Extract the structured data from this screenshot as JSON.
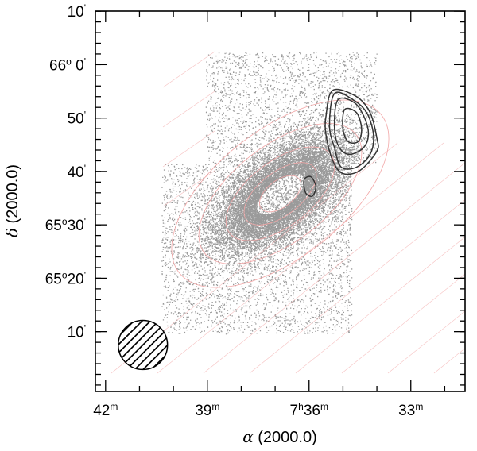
{
  "chart_data": {
    "type": "scatter",
    "title": "",
    "xlabel": {
      "sym": "α",
      "rest": " (2000.0)"
    },
    "ylabel": {
      "sym": "δ",
      "rest": " (2000.0)"
    },
    "x_unit": "right ascension (minutes of time), axis increasing to the left",
    "y_unit": "declination (arcminutes)",
    "xlim": [
      42.3,
      31.4
    ],
    "ylim": [
      64.98,
      66.167
    ],
    "grid": false,
    "legend": "none",
    "x_ticks": [
      {
        "value": 42,
        "parts": [
          [
            "42",
            ""
          ],
          [
            "m",
            "sup"
          ]
        ]
      },
      {
        "value": 39,
        "parts": [
          [
            "39",
            ""
          ],
          [
            "m",
            "sup"
          ]
        ]
      },
      {
        "value": 36,
        "parts": [
          [
            "7",
            ""
          ],
          [
            "h",
            "sup"
          ],
          [
            "36",
            ""
          ],
          [
            "m",
            "sup"
          ]
        ]
      },
      {
        "value": 33,
        "parts": [
          [
            "33",
            ""
          ],
          [
            "m",
            "sup"
          ]
        ]
      }
    ],
    "y_ticks": [
      {
        "value": 66.1667,
        "parts": [
          [
            "10",
            ""
          ],
          [
            "'",
            "sup"
          ]
        ]
      },
      {
        "value": 66.0,
        "parts": [
          [
            "66",
            ""
          ],
          [
            "o",
            "sup"
          ],
          [
            " 0",
            ""
          ],
          [
            "'",
            "sup"
          ]
        ]
      },
      {
        "value": 65.8333,
        "parts": [
          [
            "50",
            ""
          ],
          [
            "'",
            "sup"
          ]
        ]
      },
      {
        "value": 65.6667,
        "parts": [
          [
            "40",
            ""
          ],
          [
            "'",
            "sup"
          ]
        ]
      },
      {
        "value": 65.5,
        "parts": [
          [
            "65",
            ""
          ],
          [
            "o",
            "sup"
          ],
          [
            "30",
            ""
          ],
          [
            "'",
            "sup"
          ]
        ]
      },
      {
        "value": 65.3333,
        "parts": [
          [
            "65",
            ""
          ],
          [
            "o",
            "sup"
          ],
          [
            "20",
            ""
          ],
          [
            "'",
            "sup"
          ]
        ]
      },
      {
        "value": 65.1667,
        "parts": [
          [
            "10",
            ""
          ],
          [
            "'",
            "sup"
          ]
        ]
      }
    ],
    "minor_x_ticks": [
      41,
      40,
      38,
      37,
      35,
      34,
      32
    ],
    "minor_y_step_arcmin": 2,
    "galaxy_center": {
      "ra_min": 36.85,
      "dec_deg": 65.597
    },
    "star_field_regions": [
      {
        "ra_range": [
          39.05,
          34.0
        ],
        "dec_range": [
          65.69,
          66.04
        ]
      },
      {
        "ra_range": [
          40.35,
          34.75
        ],
        "dec_range": [
          65.16,
          65.69
        ]
      }
    ],
    "contours": [
      {
        "name": "contour-outer",
        "points": [
          [
            35.3,
            65.92
          ],
          [
            34.6,
            65.9
          ],
          [
            34.2,
            65.85
          ],
          [
            34.0,
            65.77
          ],
          [
            34.0,
            65.73
          ],
          [
            34.5,
            65.67
          ],
          [
            35.0,
            65.66
          ],
          [
            35.3,
            65.7
          ],
          [
            35.5,
            65.78
          ],
          [
            35.5,
            65.84
          ]
        ]
      },
      {
        "name": "contour-2",
        "points": [
          [
            35.25,
            65.91
          ],
          [
            34.7,
            65.89
          ],
          [
            34.3,
            65.85
          ],
          [
            34.1,
            65.78
          ],
          [
            34.2,
            65.72
          ],
          [
            34.6,
            65.68
          ],
          [
            35.05,
            65.68
          ],
          [
            35.25,
            65.74
          ],
          [
            35.4,
            65.81
          ]
        ]
      },
      {
        "name": "contour-3",
        "points": [
          [
            35.15,
            65.89
          ],
          [
            34.65,
            65.88
          ],
          [
            34.35,
            65.83
          ],
          [
            34.25,
            65.78
          ],
          [
            34.4,
            65.74
          ],
          [
            34.8,
            65.72
          ],
          [
            35.1,
            65.74
          ],
          [
            35.25,
            65.8
          ]
        ]
      },
      {
        "name": "contour-inner",
        "points": [
          [
            34.95,
            65.86
          ],
          [
            34.6,
            65.85
          ],
          [
            34.45,
            65.8
          ],
          [
            34.55,
            65.76
          ],
          [
            34.85,
            65.76
          ],
          [
            35.0,
            65.8
          ]
        ]
      },
      {
        "name": "contour-core",
        "points": [
          [
            36.15,
            65.64
          ],
          [
            35.95,
            65.65
          ],
          [
            35.8,
            65.62
          ],
          [
            35.9,
            65.59
          ],
          [
            36.1,
            65.6
          ]
        ]
      }
    ],
    "isophotes_arcmin": [
      {
        "a": 4.5,
        "b": 2.5,
        "pa_deg": -38
      },
      {
        "a": 8,
        "b": 4,
        "pa_deg": -38
      },
      {
        "a": 12,
        "b": 6,
        "pa_deg": -38
      },
      {
        "a": 18,
        "b": 9,
        "pa_deg": -38
      },
      {
        "a": 24,
        "b": 12,
        "pa_deg": -38
      }
    ],
    "beam": {
      "ra_min": 40.9,
      "dec_deg": 65.125,
      "radius_arcmin": 4.6
    },
    "colors": {
      "dots": "#9a9a9a",
      "contours": "#333333",
      "isophotes": "#f2a6a6",
      "axes": "#000000"
    }
  }
}
